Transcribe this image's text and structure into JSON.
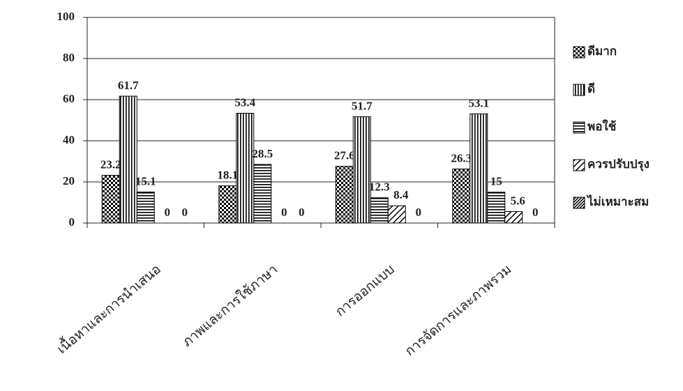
{
  "chart_data": {
    "type": "bar",
    "categories": [
      "เนื้อหาและการนำเสนอ",
      "ภาพและการใช้ภาษา",
      "การออกแบบ",
      "การจัดการและภาพรวม"
    ],
    "series": [
      {
        "name": "ดีมาก",
        "color": "#000000",
        "values": [
          23.2,
          18.1,
          27.6,
          26.3
        ]
      },
      {
        "name": "ดี",
        "color": "#000000",
        "values": [
          61.7,
          53.4,
          51.7,
          53.1
        ]
      },
      {
        "name": "พอใช้",
        "color": "#000000",
        "values": [
          15.1,
          28.5,
          12.3,
          15
        ]
      },
      {
        "name": "ควรปรับปรุง",
        "color": "#000000",
        "values": [
          0,
          0,
          8.4,
          5.6
        ]
      },
      {
        "name": "ไม่เหมาะสม",
        "color": "#000000",
        "values": [
          0,
          0,
          0,
          0
        ]
      }
    ],
    "ylim": [
      0,
      100
    ],
    "yticks": [
      0,
      20,
      40,
      60,
      80,
      100
    ],
    "grid": true,
    "legend": "right"
  }
}
